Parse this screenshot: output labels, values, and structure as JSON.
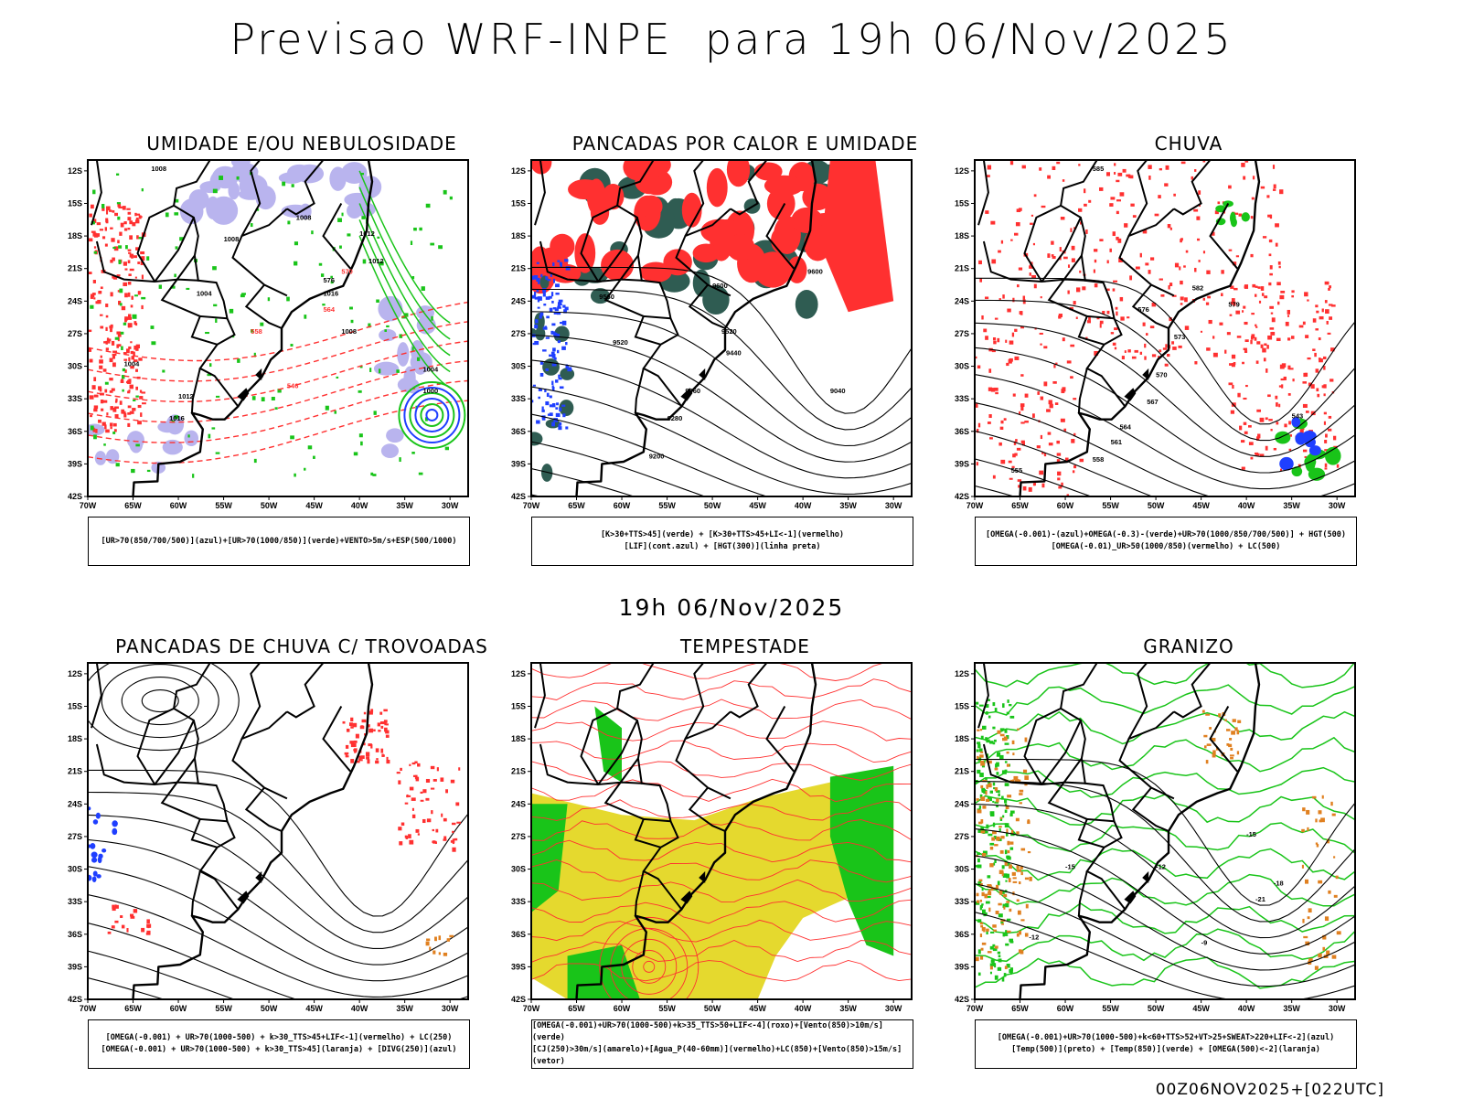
{
  "main_title": "Previsao WRF-INPE  para 19h 06/Nov/2025",
  "mid_title": "19h 06/Nov/2025",
  "footer": "00Z06NOV2025+[022UTC]",
  "axes": {
    "lat_labels": [
      "12S",
      "15S",
      "18S",
      "21S",
      "24S",
      "27S",
      "30S",
      "33S",
      "36S",
      "39S",
      "42S"
    ],
    "lon_labels": [
      "70W",
      "65W",
      "60W",
      "55W",
      "50W",
      "45W",
      "40W",
      "35W",
      "30W"
    ]
  },
  "colors": {
    "blue": "#1f3fff",
    "lavender": "#b9b4ee",
    "green": "#19c419",
    "red": "#ff3030",
    "yellow": "#e5d92e",
    "darkteal": "#2f5c52",
    "orange": "#e08020"
  },
  "panels": [
    {
      "title": "UMIDADE E/OU NEBULOSIDADE",
      "legend": [
        "[UR>70(850/700/500)](azul)+[UR>70(1000/850)](verde)+VENTO>5m/s+ESP(500/1000)"
      ],
      "contour_labels": [
        "1008",
        "1008",
        "1008",
        "1004",
        "1012",
        "1016",
        "1012",
        "1008",
        "1004",
        "1012",
        "1016",
        "576",
        "570",
        "564",
        "558",
        "546",
        "1004",
        "1000"
      ]
    },
    {
      "title": "PANCADAS POR CALOR E UMIDADE",
      "legend": [
        "[K>30+TTS>45](verde) + [K>30+TTS>45+LI<-1](vermelho)",
        "[LIF](cont.azul) + [HGT(300)](linha preta)"
      ],
      "contour_labels": [
        "9600",
        "9600",
        "9560",
        "9520",
        "9520",
        "9440",
        "9360",
        "9280",
        "9200",
        "9040"
      ]
    },
    {
      "title": "CHUVA",
      "legend": [
        "[OMEGA(-0.001)-(azul)+OMEGA(-0.3)-(verde)+UR>70(1000/850/700/500)] + HGT(500)",
        "[OMEGA(-0.01)_UR>50(1000/850)(vermelho) + LC(500)"
      ],
      "contour_labels": [
        "585",
        "582",
        "579",
        "576",
        "573",
        "570",
        "567",
        "564",
        "561",
        "558",
        "555",
        "543"
      ]
    },
    {
      "title": "PANCADAS DE CHUVA C/ TROVOADAS",
      "legend": [
        "[OMEGA(-0.001) + UR>70(1000-500) + k>30_TTS>45+LIF<-1](vermelho) + LC(250)",
        "[OMEGA(-0.001) + UR>70(1000-500) + k>30_TTS>45](laranja) + [DIVG(250)](azul)"
      ],
      "contour_labels": []
    },
    {
      "title": "TEMPESTADE",
      "legend": [
        "[OMEGA(-0.001)+UR>70(1000-500)+k>35_TTS>50+LIF<-4](roxo)+[Vento(850)>10m/s](verde)",
        "[CJ(250)>30m/s](amarelo)+[Agua_P(40-60mm)](vermelho)+LC(850)+[Vento(850)>15m/s](vetor)"
      ],
      "contour_labels": []
    },
    {
      "title": "GRANIZO",
      "legend": [
        "[OMEGA(-0.001)+UR>70(1000-500)+k<60+TTS>52+VT>25+SWEAT>220+LIF<-2](azul)",
        "[Temp(500)](preto) + [Temp(850)](verde) + [OMEGA(500)<-2](laranja)"
      ],
      "contour_labels": [
        "-15",
        "-18",
        "-12",
        "-15",
        "-21",
        "-12",
        "-9"
      ]
    }
  ]
}
